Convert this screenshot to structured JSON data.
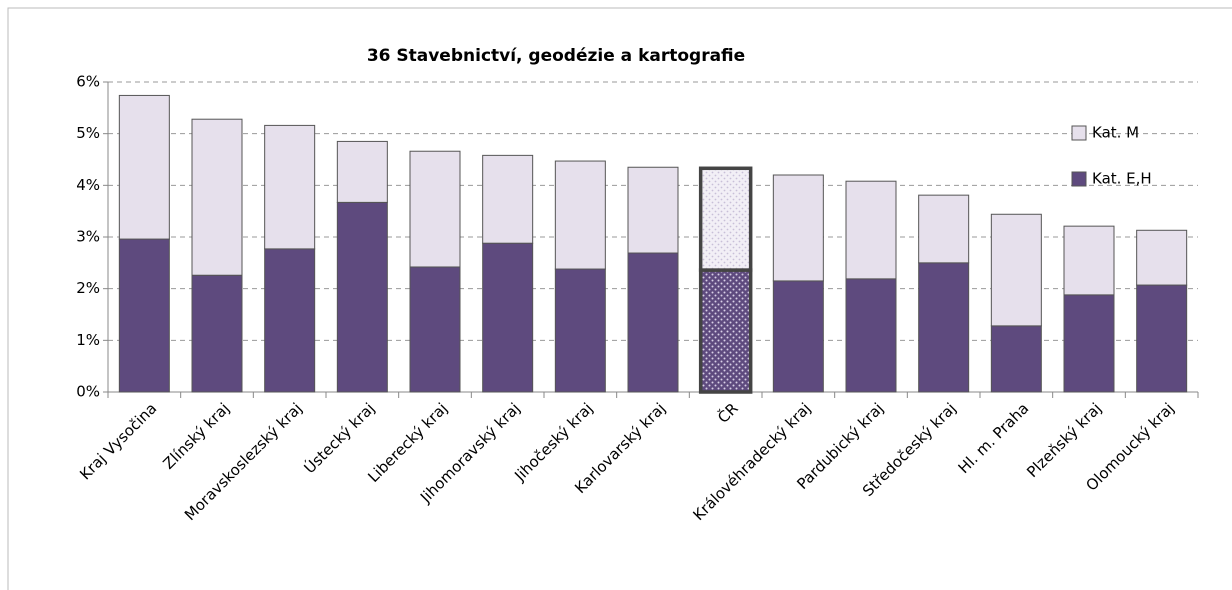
{
  "chart_data": {
    "type": "stacked_bar",
    "title": "36 Stavebnictví, geodézie a kartografie",
    "categories": [
      "Kraj Vysočina",
      "Zlínský kraj",
      "Moravskoslezský kraj",
      "Ústecký kraj",
      "Liberecký kraj",
      "Jihomoravský kraj",
      "Jihočeský kraj",
      "Karlovarský kraj",
      "ČR",
      "Královéhradecký kraj",
      "Pardubický kraj",
      "Středočeský kraj",
      "Hl. m. Praha",
      "Plzeňský kraj",
      "Olomoucký kraj"
    ],
    "series": [
      {
        "name": "Kat. E,H",
        "color": "#5e4a7e",
        "values": [
          2.96,
          2.26,
          2.77,
          3.67,
          2.42,
          2.88,
          2.38,
          2.69,
          2.36,
          2.15,
          2.19,
          2.5,
          1.28,
          1.88,
          2.07
        ]
      },
      {
        "name": "Kat. M",
        "color": "#e6e0ec",
        "values": [
          2.78,
          3.02,
          2.39,
          1.18,
          2.24,
          1.7,
          2.09,
          1.66,
          1.97,
          2.05,
          1.89,
          1.31,
          2.16,
          1.33,
          1.06
        ]
      }
    ],
    "ylim": [
      0,
      6
    ],
    "yticks": [
      {
        "value": 0,
        "label": "0%"
      },
      {
        "value": 1,
        "label": "1%"
      },
      {
        "value": 2,
        "label": "2%"
      },
      {
        "value": 3,
        "label": "3%"
      },
      {
        "value": 4,
        "label": "4%"
      },
      {
        "value": 5,
        "label": "5%"
      },
      {
        "value": 6,
        "label": "6%"
      }
    ],
    "grid": true,
    "legend": "right",
    "highlight_index": 8
  }
}
